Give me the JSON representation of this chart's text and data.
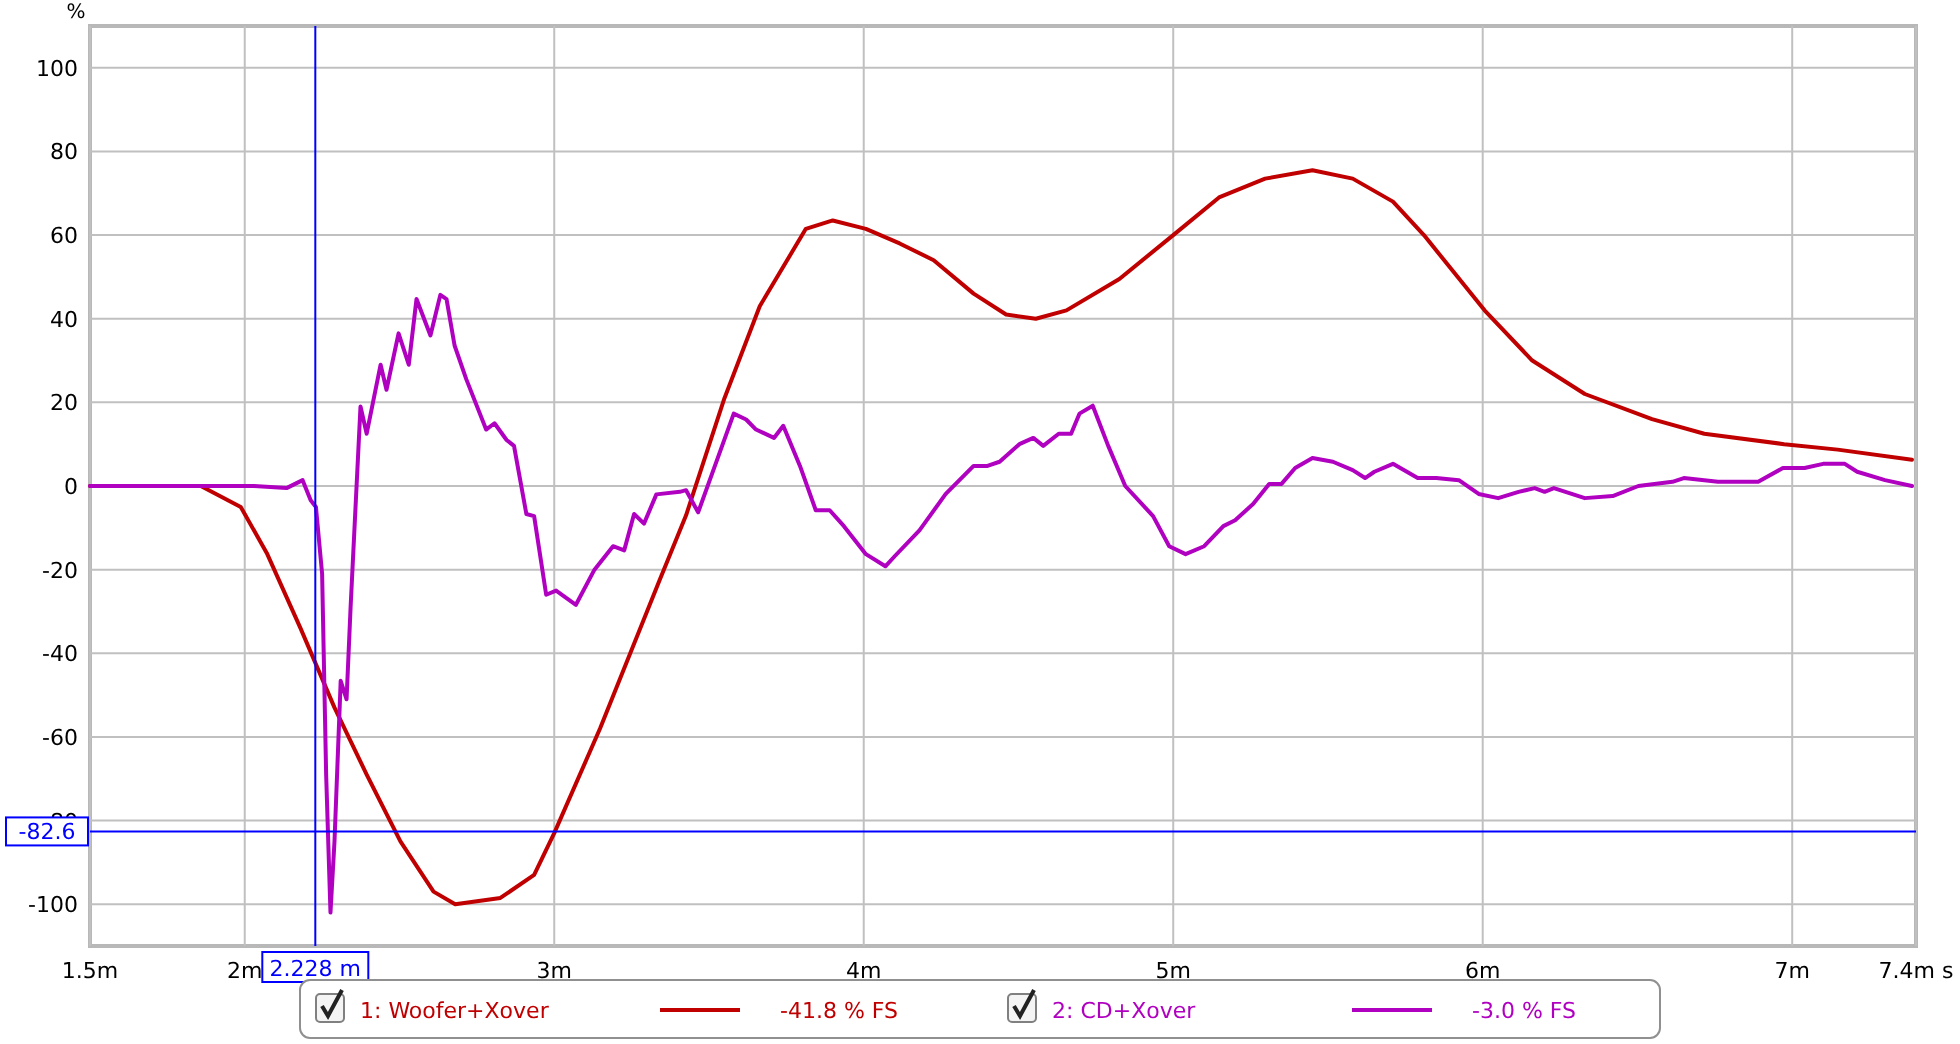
{
  "chart_data": {
    "type": "line",
    "ylabel": "%",
    "xlim": [
      1.5,
      7.4
    ],
    "ylim": [
      -110,
      110
    ],
    "xticks": [
      {
        "value": 1.5,
        "label": "1.5m"
      },
      {
        "value": 2,
        "label": "2m"
      },
      {
        "value": 3,
        "label": "3m"
      },
      {
        "value": 4,
        "label": "4m"
      },
      {
        "value": 5,
        "label": "5m"
      },
      {
        "value": 6,
        "label": "6m"
      },
      {
        "value": 7,
        "label": "7m"
      },
      {
        "value": 7.4,
        "label": "7.4m s"
      }
    ],
    "yticks": [
      -100,
      -80,
      -60,
      -40,
      -20,
      0,
      20,
      40,
      60,
      80,
      100
    ],
    "grid": true,
    "legend": "bottom",
    "line_style": "solid",
    "marker": "none",
    "ref_lines": [
      {
        "axis": "x",
        "value": 2.228,
        "label": "2.228 m",
        "color": "#0000ff"
      },
      {
        "axis": "y",
        "value": -82.6,
        "label": "-82.6",
        "color": "#0000ff"
      }
    ],
    "annotations": [
      "-41.8 % FS",
      "-3.0 % FS"
    ],
    "series": [
      {
        "name": "1: Woofer+Xover",
        "color": "#c00000",
        "x": [
          1.5,
          1.858,
          1.987,
          2.071,
          2.18,
          2.29,
          2.394,
          2.503,
          2.61,
          2.68,
          2.826,
          2.935,
          3.0,
          3.148,
          3.34,
          3.426,
          3.55,
          3.664,
          3.813,
          3.9,
          4.007,
          4.116,
          4.226,
          4.355,
          4.46,
          4.556,
          4.655,
          4.826,
          5.0,
          5.148,
          5.297,
          5.45,
          5.58,
          5.71,
          5.81,
          6.006,
          6.16,
          6.33,
          6.547,
          6.716,
          6.974,
          7.147,
          7.387
        ],
        "values": [
          0,
          0,
          -5,
          -16,
          -34,
          -53,
          -69,
          -85,
          -97,
          -100,
          -98.5,
          -93,
          -83,
          -58,
          -22.6,
          -7,
          21,
          43,
          61.5,
          63.5,
          61.5,
          58,
          54,
          46,
          41,
          40,
          42,
          49.5,
          60,
          69,
          73.5,
          75.5,
          73.5,
          68,
          60,
          42,
          30,
          22,
          16,
          12.5,
          10,
          8.7,
          6.3
        ]
      },
      {
        "name": "2: CD+Xover",
        "color": "#b000c0",
        "x": [
          1.5,
          1.858,
          2.03,
          2.135,
          2.187,
          2.213,
          2.23,
          2.25,
          2.263,
          2.277,
          2.29,
          2.31,
          2.329,
          2.342,
          2.374,
          2.394,
          2.439,
          2.458,
          2.497,
          2.53,
          2.555,
          2.6,
          2.632,
          2.652,
          2.678,
          2.716,
          2.78,
          2.807,
          2.846,
          2.87,
          2.91,
          2.935,
          2.974,
          3.006,
          3.07,
          3.13,
          3.19,
          3.226,
          3.258,
          3.29,
          3.33,
          3.406,
          3.426,
          3.465,
          3.58,
          3.62,
          3.652,
          3.71,
          3.74,
          3.794,
          3.845,
          3.89,
          3.936,
          4.007,
          4.07,
          4.1,
          4.18,
          4.265,
          4.355,
          4.4,
          4.439,
          4.503,
          4.548,
          4.58,
          4.63,
          4.67,
          4.697,
          4.74,
          4.79,
          4.845,
          4.935,
          4.987,
          5.04,
          5.1,
          5.162,
          5.2,
          5.258,
          5.31,
          5.35,
          5.394,
          5.45,
          5.516,
          5.58,
          5.62,
          5.65,
          5.71,
          5.79,
          5.85,
          5.923,
          5.987,
          6.05,
          6.116,
          6.168,
          6.2,
          6.23,
          6.33,
          6.42,
          6.503,
          6.613,
          6.65,
          6.76,
          6.89,
          6.97,
          7.04,
          7.1,
          7.17,
          7.21,
          7.3,
          7.387
        ],
        "values": [
          0,
          0,
          0,
          -0.5,
          1.4,
          -3.4,
          -5,
          -21,
          -69,
          -102,
          -85,
          -46.6,
          -51,
          -29,
          19,
          12.5,
          29,
          23,
          36.5,
          29,
          44.7,
          36,
          45.7,
          44.7,
          33.6,
          25.5,
          13.5,
          15,
          11,
          9.6,
          -6.7,
          -7.2,
          -26,
          -25,
          -28.4,
          -20,
          -14.4,
          -15.4,
          -6.7,
          -9,
          -2,
          -1.4,
          -1,
          -6.3,
          17.3,
          15.9,
          13.5,
          11.5,
          14.4,
          4.8,
          -5.8,
          -5.8,
          -9.6,
          -16.3,
          -19.2,
          -16.8,
          -10.6,
          -1.9,
          4.8,
          4.8,
          5.8,
          10,
          11.5,
          9.6,
          12.5,
          12.5,
          17.3,
          19.2,
          9.6,
          0,
          -7.2,
          -14.4,
          -16.3,
          -14.4,
          -9.6,
          -8.2,
          -4.3,
          0.5,
          0.5,
          4.3,
          6.7,
          5.8,
          3.8,
          1.9,
          3.4,
          5.3,
          1.9,
          1.9,
          1.4,
          -1.9,
          -2.9,
          -1.4,
          -0.5,
          -1.4,
          -0.5,
          -2.9,
          -2.4,
          0,
          1,
          1.9,
          1,
          1,
          4.3,
          4.3,
          5.3,
          5.3,
          3.4,
          1.4,
          0
        ]
      }
    ]
  }
}
